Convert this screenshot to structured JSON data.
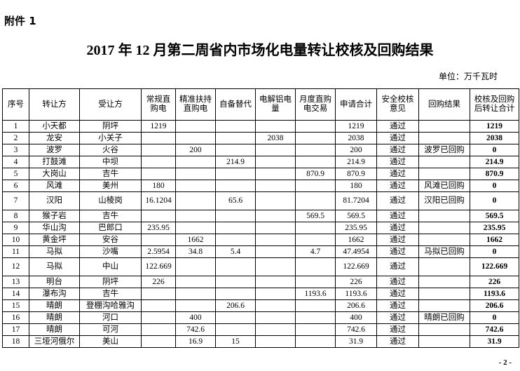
{
  "attachment": "附件 1",
  "title": "2017 年 12 月第二周省内市场化电量转让校核及回购结果",
  "unit": "单位：万千瓦时",
  "page_number": "- 2 -",
  "table": {
    "headers": [
      "序号",
      "转让方",
      "受让方",
      "常规直购电",
      "精准扶持直购电",
      "自备替代",
      "电解铝电量",
      "月度直购电交易",
      "申请合计",
      "安全校核意见",
      "回购结果",
      "校核及回购后转让合计"
    ],
    "rows": [
      [
        "1",
        "小天都",
        "阴坪",
        "1219",
        "",
        "",
        "",
        "",
        "1219",
        "通过",
        "",
        "1219"
      ],
      [
        "2",
        "龙安",
        "小关子",
        "",
        "",
        "",
        "2038",
        "",
        "2038",
        "通过",
        "",
        "2038"
      ],
      [
        "3",
        "波罗",
        "火谷",
        "",
        "200",
        "",
        "",
        "",
        "200",
        "通过",
        "波罗已回购",
        "0"
      ],
      [
        "4",
        "打鼓滩",
        "中坝",
        "",
        "",
        "214.9",
        "",
        "",
        "214.9",
        "通过",
        "",
        "214.9"
      ],
      [
        "5",
        "大岗山",
        "吉牛",
        "",
        "",
        "",
        "",
        "870.9",
        "870.9",
        "通过",
        "",
        "870.9"
      ],
      [
        "6",
        "风滩",
        "美州",
        "180",
        "",
        "",
        "",
        "",
        "180",
        "通过",
        "风滩已回购",
        "0"
      ],
      [
        "7",
        "汉阳",
        "山棱岗",
        "16.1204",
        "",
        "65.6",
        "",
        "",
        "81.7204",
        "通过",
        "汉阳已回购",
        "0"
      ],
      [
        "8",
        "猴子岩",
        "吉牛",
        "",
        "",
        "",
        "",
        "569.5",
        "569.5",
        "通过",
        "",
        "569.5"
      ],
      [
        "9",
        "华山沟",
        "巴郎口",
        "235.95",
        "",
        "",
        "",
        "",
        "235.95",
        "通过",
        "",
        "235.95"
      ],
      [
        "10",
        "黄金坪",
        "安谷",
        "",
        "1662",
        "",
        "",
        "",
        "1662",
        "通过",
        "",
        "1662"
      ],
      [
        "11",
        "马拟",
        "沙嘴",
        "2.5954",
        "34.8",
        "5.4",
        "",
        "4.7",
        "47.4954",
        "通过",
        "马拟已回购",
        "0"
      ],
      [
        "12",
        "马拟",
        "中山",
        "122.669",
        "",
        "",
        "",
        "",
        "122.669",
        "通过",
        "",
        "122.669"
      ],
      [
        "13",
        "明台",
        "阴坪",
        "226",
        "",
        "",
        "",
        "",
        "226",
        "通过",
        "",
        "226"
      ],
      [
        "14",
        "瀑布沟",
        "吉牛",
        "",
        "",
        "",
        "",
        "1193.6",
        "1193.6",
        "通过",
        "",
        "1193.6"
      ],
      [
        "15",
        "晴朗",
        "登棚沟哈雅沟",
        "",
        "",
        "206.6",
        "",
        "",
        "206.6",
        "通过",
        "",
        "206.6"
      ],
      [
        "16",
        "晴朗",
        "河口",
        "",
        "400",
        "",
        "",
        "",
        "400",
        "通过",
        "晴朗已回购",
        "0"
      ],
      [
        "17",
        "晴朗",
        "可河",
        "",
        "742.6",
        "",
        "",
        "",
        "742.6",
        "通过",
        "",
        "742.6"
      ],
      [
        "18",
        "三垭河俄尔",
        "美山",
        "",
        "16.9",
        "15",
        "",
        "",
        "31.9",
        "通过",
        "",
        "31.9"
      ]
    ]
  }
}
